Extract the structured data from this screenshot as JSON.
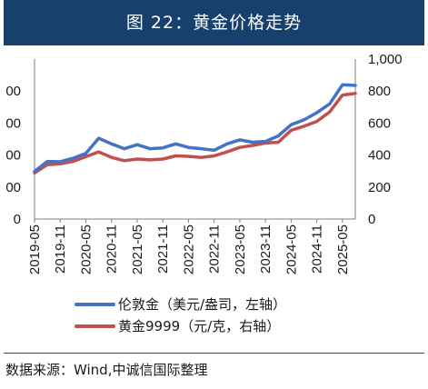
{
  "header": {
    "title": "图 22：黄金价格走势"
  },
  "source": {
    "text": "数据来源：Wind,中诚信国际整理"
  },
  "chart_data": {
    "type": "line",
    "title": "",
    "xlabel": "",
    "ylabel": "",
    "x_tick_labels": [
      "2019-05",
      "2019-11",
      "2020-05",
      "2020-11",
      "2021-05",
      "2021-11",
      "2022-05",
      "2022-11",
      "2023-05",
      "2023-11",
      "2024-05",
      "2024-11",
      "2025-05"
    ],
    "x_range": [
      "2019-05-01",
      "2025-08-01"
    ],
    "y_left": {
      "ticks": [
        "0",
        "00",
        "00",
        "00",
        "00"
      ],
      "note": "tick labels are cropped at the left edge"
    },
    "y_right": {
      "ticks": [
        "0",
        "200",
        "400",
        "600",
        "800",
        "1,000"
      ],
      "ylim": [
        0,
        1000
      ]
    },
    "grid": false,
    "legend_position": "bottom-left",
    "series": [
      {
        "name": "伦敦金（美元/盎司，左轴）",
        "color": "#4472c4",
        "axis": "left",
        "note": "values read on the right-axis scale as plotted",
        "x": [
          "2019-05",
          "2019-08",
          "2019-11",
          "2020-02",
          "2020-05",
          "2020-08",
          "2020-11",
          "2021-02",
          "2021-05",
          "2021-08",
          "2021-11",
          "2022-02",
          "2022-05",
          "2022-08",
          "2022-11",
          "2023-02",
          "2023-05",
          "2023-08",
          "2023-11",
          "2024-02",
          "2024-05",
          "2024-08",
          "2024-11",
          "2025-02",
          "2025-05",
          "2025-08"
        ],
        "values": [
          298,
          360,
          358,
          380,
          410,
          505,
          470,
          440,
          465,
          440,
          445,
          470,
          448,
          440,
          430,
          470,
          495,
          480,
          485,
          520,
          590,
          620,
          665,
          720,
          840,
          835
        ]
      },
      {
        "name": "黄金9999（元/克，右轴）",
        "color": "#c0504d",
        "axis": "right",
        "x": [
          "2019-05",
          "2019-08",
          "2019-11",
          "2020-02",
          "2020-05",
          "2020-08",
          "2020-11",
          "2021-02",
          "2021-05",
          "2021-08",
          "2021-11",
          "2022-02",
          "2022-05",
          "2022-08",
          "2022-11",
          "2023-02",
          "2023-05",
          "2023-08",
          "2023-11",
          "2024-02",
          "2024-05",
          "2024-08",
          "2024-11",
          "2025-02",
          "2025-05",
          "2025-08"
        ],
        "values": [
          288,
          340,
          345,
          360,
          390,
          420,
          385,
          365,
          375,
          370,
          375,
          395,
          392,
          385,
          395,
          420,
          448,
          460,
          475,
          480,
          555,
          580,
          610,
          670,
          775,
          785
        ]
      }
    ]
  }
}
